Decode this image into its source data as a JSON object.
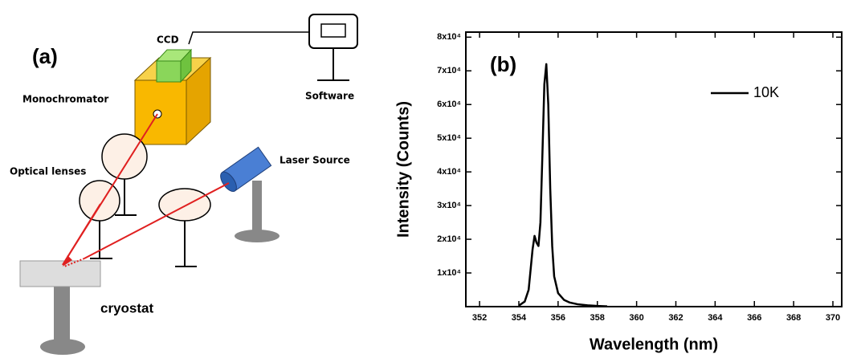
{
  "diagram": {
    "panel_label": "(a)",
    "ccd": "CCD",
    "monochromator": "Monochromator",
    "software": "Software",
    "lenses": "Optical lenses",
    "laser": "Laser Source",
    "cryostat": "cryostat"
  },
  "chart_data": {
    "type": "line",
    "panel_label": "(b)",
    "xlabel": "Wavelength (nm)",
    "ylabel": "Intensity (Counts)",
    "x": [
      354.0,
      354.3,
      354.5,
      354.7,
      354.8,
      354.9,
      355.0,
      355.1,
      355.2,
      355.3,
      355.4,
      355.5,
      355.6,
      355.7,
      355.8,
      356.0,
      356.3,
      356.6,
      357.0,
      357.5,
      358.0,
      358.5
    ],
    "series": [
      {
        "name": "10K",
        "color": "#000000",
        "values": [
          300,
          1500,
          5000,
          17000,
          21000,
          19000,
          18000,
          25000,
          45000,
          66000,
          72000,
          60000,
          35000,
          18000,
          9000,
          4000,
          2000,
          1200,
          700,
          400,
          200,
          100
        ]
      }
    ],
    "xlim": [
      351.3,
      370.45
    ],
    "xticks": [
      352,
      354,
      356,
      358,
      360,
      362,
      364,
      366,
      368,
      370
    ],
    "ylim": [
      0,
      81500
    ],
    "yticks": [
      {
        "value": 10000,
        "label": "1x10⁴"
      },
      {
        "value": 20000,
        "label": "2x10⁴"
      },
      {
        "value": 30000,
        "label": "3x10⁴"
      },
      {
        "value": 40000,
        "label": "4x10⁴"
      },
      {
        "value": 50000,
        "label": "5x10⁴"
      },
      {
        "value": 60000,
        "label": "6x10⁴"
      },
      {
        "value": 70000,
        "label": "7x10⁴"
      },
      {
        "value": 80000,
        "label": "8x10⁴"
      }
    ],
    "legend": "upper right"
  }
}
